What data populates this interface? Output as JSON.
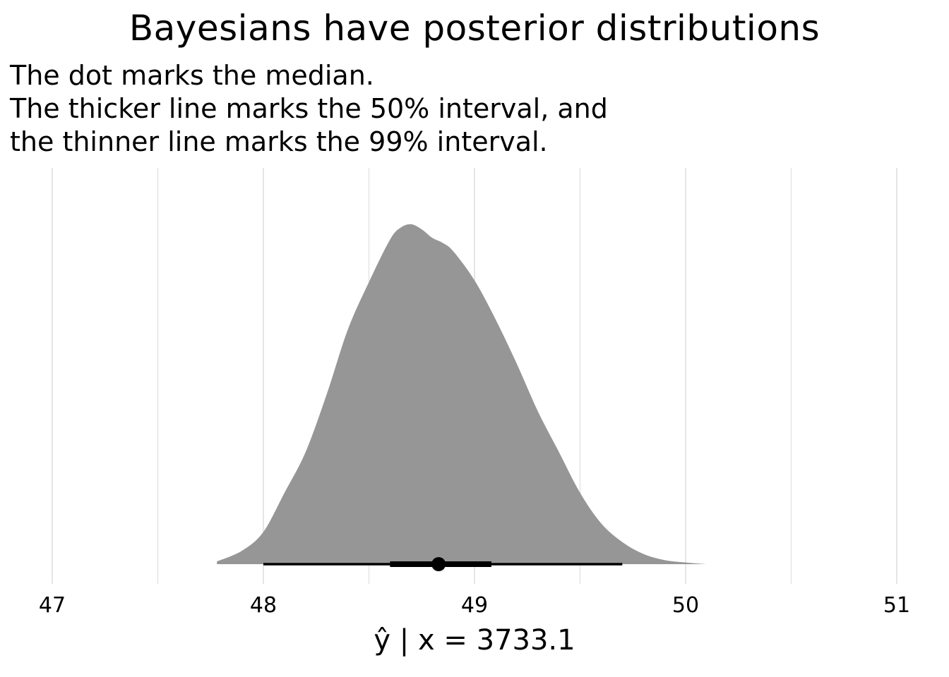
{
  "chart_data": {
    "type": "density",
    "title": "Bayesians have posterior distributions",
    "subtitle": [
      "The dot marks the median.",
      "The thicker line marks the 50% interval, and",
      "the thinner line marks the 99% interval."
    ],
    "xlabel": "ŷ | x = 3733.1",
    "ylabel": "",
    "xlim": [
      47,
      51
    ],
    "x_ticks": [
      47,
      48,
      49,
      50,
      51
    ],
    "x_tick_labels": [
      "47",
      "48",
      "49",
      "50",
      "51"
    ],
    "grid": {
      "major_x": true,
      "minor_x": true,
      "y": false
    },
    "density": {
      "x": [
        47.78,
        47.9,
        48.0,
        48.1,
        48.2,
        48.3,
        48.4,
        48.5,
        48.6,
        48.65,
        48.7,
        48.75,
        48.8,
        48.85,
        48.9,
        49.0,
        49.1,
        49.2,
        49.3,
        49.4,
        49.5,
        49.6,
        49.7,
        49.8,
        49.9,
        50.0,
        50.1
      ],
      "y": [
        0.008,
        0.04,
        0.095,
        0.21,
        0.33,
        0.5,
        0.69,
        0.83,
        0.955,
        0.99,
        1.0,
        0.985,
        0.96,
        0.945,
        0.92,
        0.835,
        0.72,
        0.59,
        0.45,
        0.33,
        0.21,
        0.12,
        0.065,
        0.03,
        0.012,
        0.005,
        0.0
      ]
    },
    "median": 48.83,
    "interval_50": [
      48.6,
      49.08
    ],
    "interval_99": [
      48.0,
      49.7
    ],
    "colors": {
      "density_fill": "#969696",
      "grid": "#e5e5e5",
      "interval": "#000000",
      "median": "#000000"
    }
  }
}
